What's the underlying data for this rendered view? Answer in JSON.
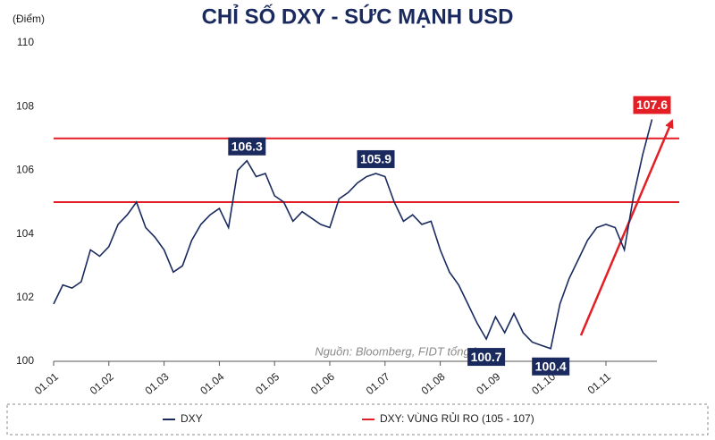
{
  "chart_data": {
    "type": "line",
    "title": "CHỈ SỐ DXY - SỨC MẠNH USD",
    "y_label": "(Điểm)",
    "source": "Nguồn: Bloomberg, FIDT tổng hợp",
    "categories": [
      "01.01",
      null,
      null,
      null,
      null,
      null,
      "01.02",
      null,
      null,
      null,
      null,
      null,
      "01.03",
      null,
      null,
      null,
      null,
      null,
      "01.04",
      null,
      null,
      null,
      null,
      null,
      "01.05",
      null,
      null,
      null,
      null,
      null,
      "01.06",
      null,
      null,
      null,
      null,
      null,
      "01.07",
      null,
      null,
      null,
      null,
      null,
      "01.08",
      null,
      null,
      null,
      null,
      null,
      "01.09",
      null,
      null,
      null,
      null,
      null,
      "01.10",
      null,
      null,
      null,
      null,
      null,
      "01.11",
      null,
      null,
      null,
      null,
      null
    ],
    "series": [
      {
        "name": "DXY",
        "color": "#1a2a5e",
        "values": [
          101.8,
          102.4,
          102.3,
          102.5,
          103.5,
          103.3,
          103.6,
          104.3,
          104.6,
          105.0,
          104.2,
          103.9,
          103.5,
          102.8,
          103.0,
          103.8,
          104.3,
          104.6,
          104.8,
          104.2,
          106.0,
          106.3,
          105.8,
          105.9,
          105.2,
          105.0,
          104.4,
          104.7,
          104.5,
          104.3,
          104.2,
          105.1,
          105.3,
          105.6,
          105.8,
          105.9,
          105.8,
          105.0,
          104.4,
          104.6,
          104.3,
          104.4,
          103.5,
          102.8,
          102.4,
          101.8,
          101.2,
          100.7,
          101.4,
          100.9,
          101.5,
          100.9,
          100.6,
          100.5,
          100.4,
          101.8,
          102.6,
          103.2,
          103.8,
          104.2,
          104.3,
          104.2,
          103.5,
          105.2,
          106.5,
          107.6
        ],
        "value_labels": [
          null,
          null,
          null,
          null,
          null,
          null,
          null,
          null,
          null,
          null,
          null,
          null,
          null,
          null,
          null,
          null,
          null,
          null,
          null,
          null,
          null,
          "106.3",
          null,
          null,
          null,
          null,
          null,
          null,
          null,
          null,
          null,
          null,
          null,
          null,
          null,
          "105.9",
          null,
          null,
          null,
          null,
          null,
          null,
          null,
          null,
          null,
          null,
          null,
          "100.7",
          null,
          null,
          null,
          null,
          null,
          null,
          "100.4",
          null,
          null,
          null,
          null,
          null,
          null,
          null,
          null,
          null,
          null,
          "107.6"
        ]
      }
    ],
    "reference_lines": {
      "name": "DXY: VÙNG RỦI RO (105 - 107)",
      "color": "#e31e24",
      "values": [
        105,
        107
      ]
    },
    "ylim": [
      100,
      110
    ],
    "yticks": [
      100,
      102,
      104,
      106,
      108,
      110
    ]
  }
}
